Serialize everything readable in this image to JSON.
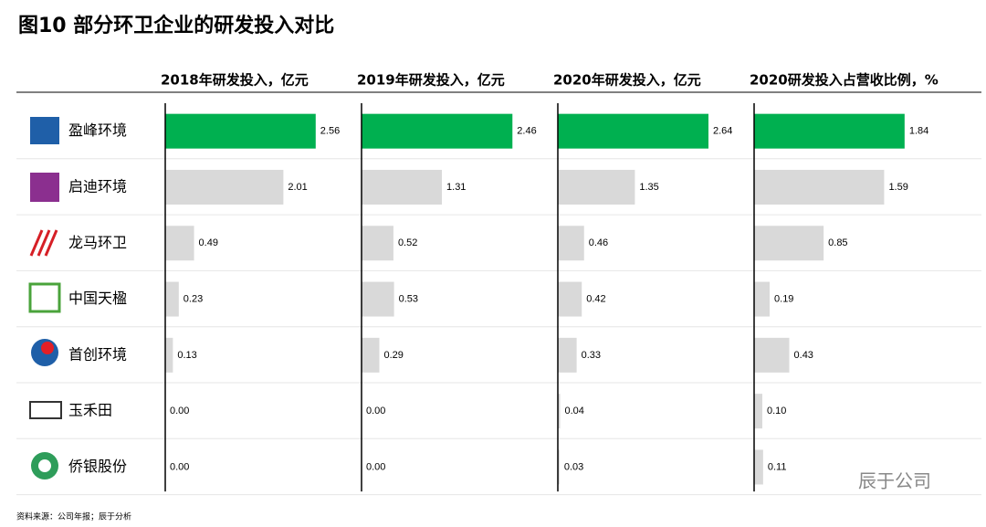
{
  "chart_data": {
    "type": "bar",
    "orientation": "horizontal",
    "title": "图10   部分环卫企业的研发投入对比",
    "source": "资料来源：公司年报；辰于分析",
    "watermark": "辰于公司",
    "categories": [
      "盈峰环境",
      "启迪环境",
      "龙马环卫",
      "中国天楹",
      "首创环境",
      "玉禾田",
      "侨银股份"
    ],
    "series": [
      {
        "name": "2018年研发投入，亿元",
        "values": [
          2.56,
          2.01,
          0.49,
          0.23,
          0.13,
          0,
          0
        ],
        "value_labels": [
          "2.56",
          "2.01",
          "0.49",
          "0.23",
          "0.13",
          "0.00",
          "0.00"
        ],
        "xlim": [
          0,
          3.34
        ],
        "colors": [
          "#00b050",
          "#d9d9d9",
          "#d9d9d9",
          "#d9d9d9",
          "#d9d9d9",
          "#d9d9d9",
          "#d9d9d9"
        ]
      },
      {
        "name": "2019年研发投入，亿元",
        "values": [
          2.46,
          1.31,
          0.52,
          0.53,
          0.29,
          0,
          0
        ],
        "value_labels": [
          "2.46",
          "1.31",
          "0.52",
          "0.53",
          "0.29",
          "0.00",
          "0.00"
        ],
        "xlim": [
          0,
          3.2
        ],
        "colors": [
          "#00b050",
          "#d9d9d9",
          "#d9d9d9",
          "#d9d9d9",
          "#d9d9d9",
          "#d9d9d9",
          "#d9d9d9"
        ]
      },
      {
        "name": "2020年研发投入，亿元",
        "values": [
          2.64,
          1.35,
          0.46,
          0.42,
          0.33,
          0.04,
          0.03
        ],
        "value_labels": [
          "2.64",
          "1.35",
          "0.46",
          "0.42",
          "0.33",
          "0.04",
          "0.03"
        ],
        "xlim": [
          0,
          3.44
        ],
        "colors": [
          "#00b050",
          "#d9d9d9",
          "#d9d9d9",
          "#d9d9d9",
          "#d9d9d9",
          "#d9d9d9",
          "#d9d9d9"
        ]
      },
      {
        "name": "2020研发投入占营收比例，%",
        "values": [
          1.84,
          1.59,
          0.85,
          0.19,
          0.43,
          0.1,
          0.11
        ],
        "value_labels": [
          "1.84",
          "1.59",
          "0.85",
          "0.19",
          "0.43",
          "0.10",
          "0.11"
        ],
        "xlim": [
          0,
          2.4
        ],
        "colors": [
          "#00b050",
          "#d9d9d9",
          "#d9d9d9",
          "#d9d9d9",
          "#d9d9d9",
          "#d9d9d9",
          "#d9d9d9"
        ]
      }
    ]
  }
}
